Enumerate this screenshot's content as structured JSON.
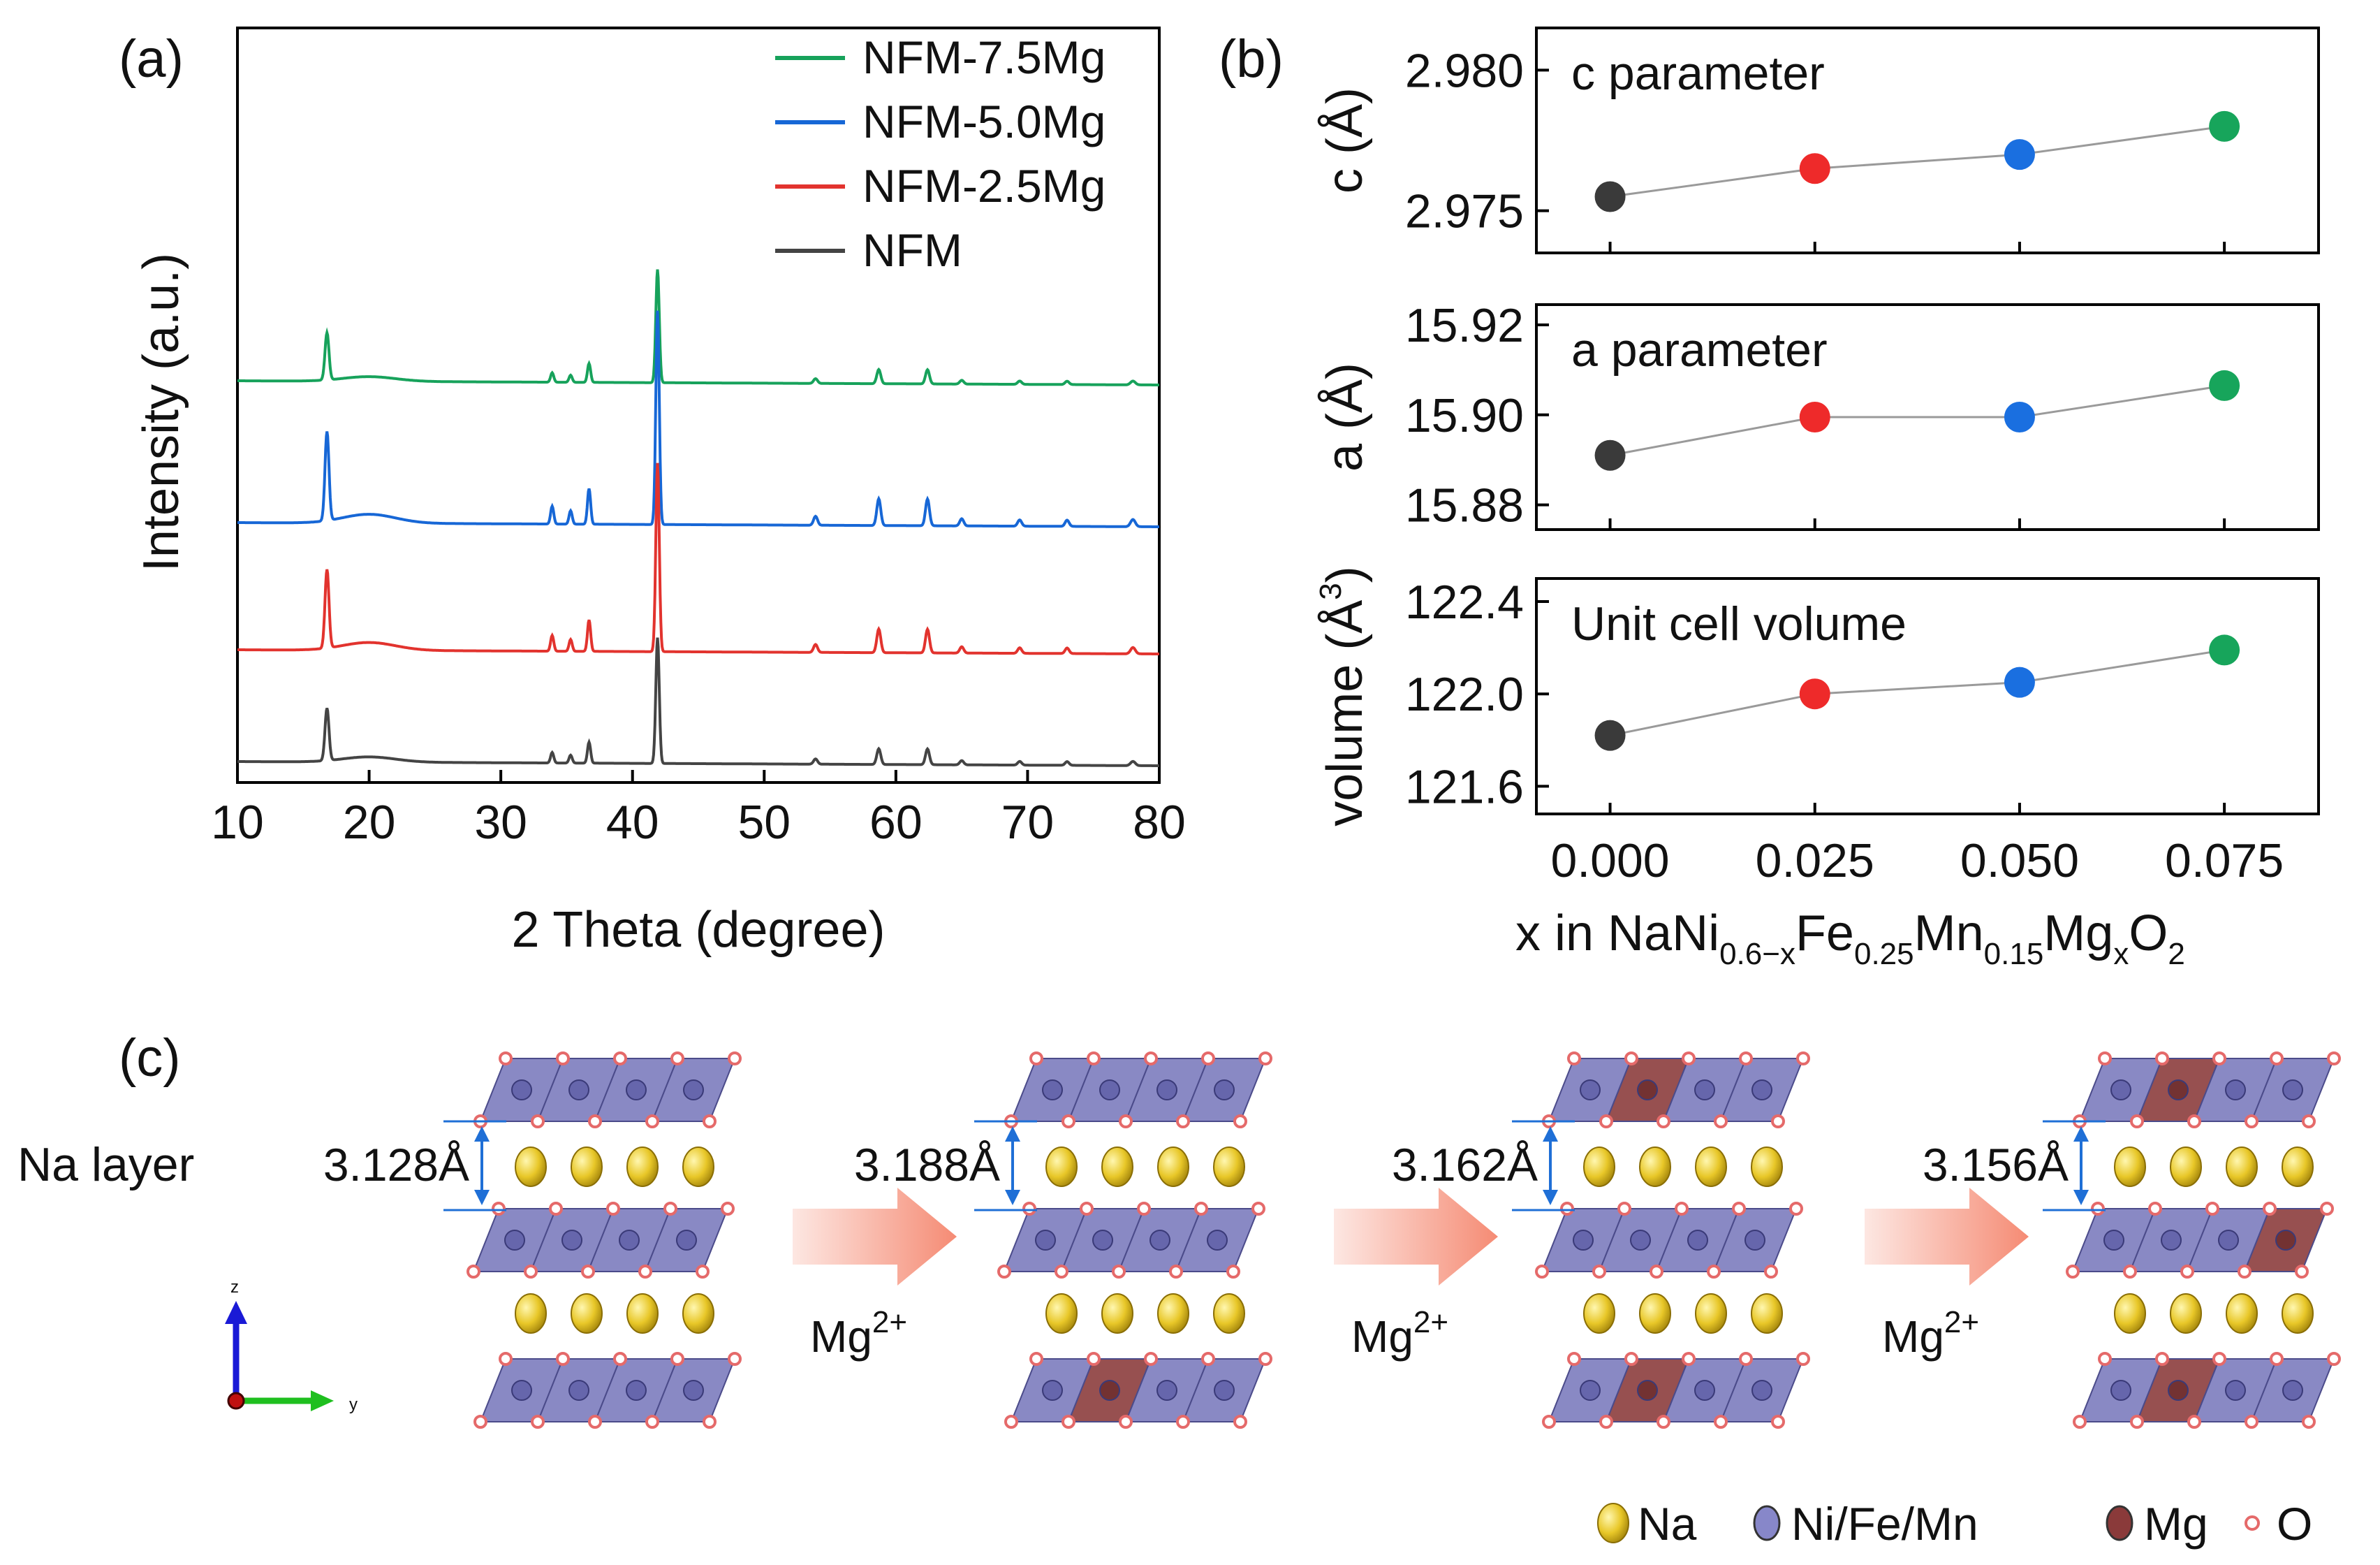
{
  "panels": {
    "a": {
      "label": "(a)"
    },
    "b": {
      "label": "(b)",
      "xlabel_parts": [
        "x in NaNi",
        "0.6−x",
        "Fe",
        "0.25",
        "Mn",
        "0.15",
        "Mg",
        "x",
        "O",
        "2"
      ]
    },
    "c": {
      "label": "(c)",
      "na_layer_label": "Na layer",
      "spacings": [
        "3.128Å",
        "3.188Å",
        "3.162Å",
        "3.156Å"
      ],
      "dopant_label": "Mg",
      "dopant_charge": "2+",
      "axis_labels": {
        "z": "z",
        "y": "y"
      },
      "legend": [
        {
          "label": "Na",
          "color": "#e0c020"
        },
        {
          "label": "Ni/Fe/Mn",
          "color": "#8787c9"
        },
        {
          "label": "Mg",
          "color": "#8a3a3a"
        },
        {
          "label": "O",
          "color": "#e56a6a"
        }
      ],
      "mg_doped_octahedra": [
        [],
        [
          [
            2,
            1
          ]
        ],
        [
          [
            0,
            1
          ],
          [
            2,
            1
          ]
        ],
        [
          [
            0,
            1
          ],
          [
            1,
            3
          ],
          [
            2,
            1
          ]
        ]
      ],
      "colors": {
        "octahedron": "#7c7cbe",
        "octahedron_edge": "#4b4b8a",
        "mg_octahedron": "#8c3d3d",
        "oxygen": "#e56a6a",
        "arrow": "#1f6fd6"
      }
    }
  },
  "chart_data": [
    {
      "type": "line",
      "panel": "a",
      "xlabel": "2 Theta (degree)",
      "ylabel": "Intensity (a.u.)",
      "xlim": [
        10,
        80
      ],
      "xticks": [
        10,
        20,
        30,
        40,
        50,
        60,
        70,
        80
      ],
      "y_ticks_shown": false,
      "peaks": [
        {
          "x": 16.8,
          "h": 1.0,
          "w": 0.15
        },
        {
          "x": 20.0,
          "h": 0.1,
          "w": 2.0
        },
        {
          "x": 33.9,
          "h": 0.2,
          "w": 0.12
        },
        {
          "x": 35.3,
          "h": 0.15,
          "w": 0.12
        },
        {
          "x": 36.7,
          "h": 0.4,
          "w": 0.12
        },
        {
          "x": 41.9,
          "h": 2.4,
          "w": 0.13
        },
        {
          "x": 53.9,
          "h": 0.1,
          "w": 0.15
        },
        {
          "x": 58.7,
          "h": 0.3,
          "w": 0.15
        },
        {
          "x": 62.4,
          "h": 0.3,
          "w": 0.15
        },
        {
          "x": 65.0,
          "h": 0.08,
          "w": 0.15
        },
        {
          "x": 69.4,
          "h": 0.07,
          "w": 0.15
        },
        {
          "x": 73.0,
          "h": 0.07,
          "w": 0.15
        },
        {
          "x": 78.0,
          "h": 0.08,
          "w": 0.18
        }
      ],
      "series": [
        {
          "name": "NFM-7.5Mg",
          "color": "#17a25b",
          "offset": 3,
          "scale": 0.45
        },
        {
          "name": "NFM-5.0Mg",
          "color": "#1767d6",
          "offset": 2,
          "scale": 0.85
        },
        {
          "name": "NFM-2.5Mg",
          "color": "#e2332e",
          "offset": 1,
          "scale": 0.75
        },
        {
          "name": "NFM",
          "color": "#444444",
          "offset": 0,
          "scale": 0.5
        }
      ]
    },
    {
      "type": "scatter",
      "panel": "b-top",
      "annotation": "c parameter",
      "ylabel": "c (Å)",
      "x": [
        0.0,
        0.025,
        0.05,
        0.075
      ],
      "y": [
        2.9755,
        2.9765,
        2.977,
        2.978
      ],
      "ylim": [
        2.9735,
        2.9815
      ],
      "yticks": [
        2.975,
        2.98
      ],
      "ytick_labels": [
        "2.975",
        "2.980"
      ],
      "colors": [
        "#3a3a3a",
        "#ee2a2a",
        "#1a6fe0",
        "#17a55b"
      ]
    },
    {
      "type": "scatter",
      "panel": "b-middle",
      "annotation": "a parameter",
      "ylabel": "a (Å)",
      "x": [
        0.0,
        0.025,
        0.05,
        0.075
      ],
      "y": [
        15.891,
        15.8995,
        15.8995,
        15.9065
      ],
      "ylim": [
        15.8745,
        15.9245
      ],
      "yticks": [
        15.88,
        15.9,
        15.92
      ],
      "ytick_labels": [
        "15.88",
        "15.90",
        "15.92"
      ],
      "colors": [
        "#3a3a3a",
        "#ee2a2a",
        "#1a6fe0",
        "#17a55b"
      ]
    },
    {
      "type": "scatter",
      "panel": "b-bottom",
      "annotation": "Unit cell volume",
      "ylabel": "volume (Å",
      "ylabel_sup": "3",
      "ylabel_close": ")",
      "x": [
        0.0,
        0.025,
        0.05,
        0.075
      ],
      "y": [
        121.82,
        122.0,
        122.05,
        122.19
      ],
      "ylim": [
        121.48,
        122.5
      ],
      "yticks": [
        121.6,
        122.0,
        122.4
      ],
      "ytick_labels": [
        "121.6",
        "122.0",
        "122.4"
      ],
      "xlim": [
        -0.009,
        0.0865
      ],
      "xticks": [
        0.0,
        0.025,
        0.05,
        0.075
      ],
      "xtick_labels": [
        "0.000",
        "0.025",
        "0.050",
        "0.075"
      ],
      "colors": [
        "#3a3a3a",
        "#ee2a2a",
        "#1a6fe0",
        "#17a55b"
      ]
    }
  ]
}
